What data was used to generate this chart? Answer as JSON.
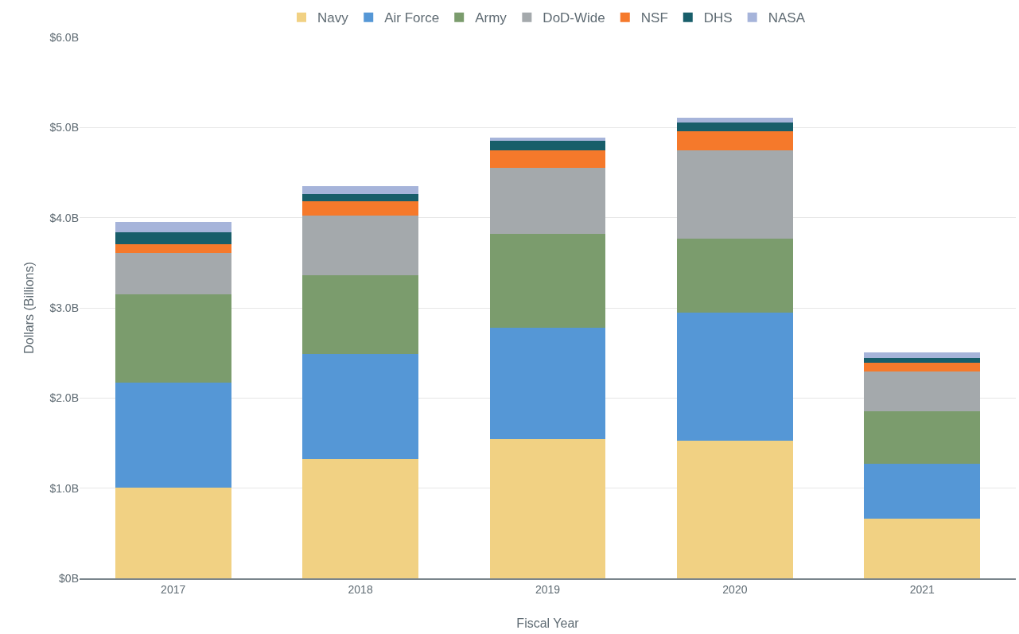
{
  "chart_data": {
    "type": "bar",
    "stacked": true,
    "xlabel": "Fiscal Year",
    "ylabel": "Dollars (Billions)",
    "categories": [
      "2017",
      "2018",
      "2019",
      "2020",
      "2021"
    ],
    "series": [
      {
        "name": "Navy",
        "color": "#f1d183",
        "values": [
          1.01,
          1.32,
          1.54,
          1.53,
          0.66
        ]
      },
      {
        "name": "Air Force",
        "color": "#5597d6",
        "values": [
          1.16,
          1.17,
          1.24,
          1.42,
          0.61
        ]
      },
      {
        "name": "Army",
        "color": "#7b9c6d",
        "values": [
          0.98,
          0.87,
          1.04,
          0.82,
          0.58
        ]
      },
      {
        "name": "DoD-Wide",
        "color": "#a4a9ac",
        "values": [
          0.46,
          0.66,
          0.73,
          0.98,
          0.44
        ]
      },
      {
        "name": "NSF",
        "color": "#f5792b",
        "values": [
          0.1,
          0.16,
          0.2,
          0.21,
          0.1
        ]
      },
      {
        "name": "DHS",
        "color": "#185e6a",
        "values": [
          0.13,
          0.08,
          0.1,
          0.1,
          0.05
        ]
      },
      {
        "name": "NASA",
        "color": "#a6b4da",
        "values": [
          0.11,
          0.09,
          0.04,
          0.05,
          0.07
        ]
      }
    ],
    "ylim": [
      0,
      6
    ],
    "yticks": [
      {
        "value": 0,
        "label": "$0B"
      },
      {
        "value": 1,
        "label": "$1.0B"
      },
      {
        "value": 2,
        "label": "$2.0B"
      },
      {
        "value": 3,
        "label": "$3.0B"
      },
      {
        "value": 4,
        "label": "$4.0B"
      },
      {
        "value": 5,
        "label": "$5.0B"
      },
      {
        "value": 6,
        "label": "$6.0B"
      }
    ],
    "grid": "y",
    "legend": "top"
  }
}
